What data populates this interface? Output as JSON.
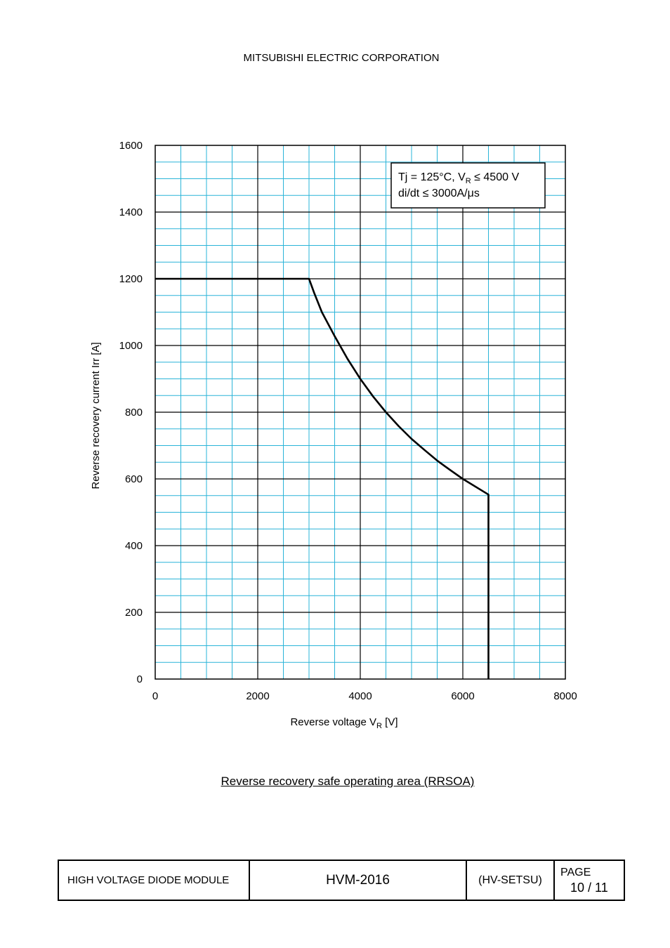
{
  "header": {
    "company": "MITSUBISHI ELECTRIC CORPORATION"
  },
  "chart_data": {
    "type": "line",
    "xlabel": "Reverse voltage    V",
    "xlabel_sub": "R",
    "xlabel_unit": " [V]",
    "ylabel": "Reverse recovery current    Irr [A]",
    "xlim": [
      0,
      8000
    ],
    "ylim": [
      0,
      1600
    ],
    "x_ticks": [
      "0",
      "2000",
      "4000",
      "6000",
      "8000"
    ],
    "y_ticks": [
      "0",
      "200",
      "400",
      "600",
      "800",
      "1000",
      "1200",
      "1400",
      "1600"
    ],
    "grid": true,
    "annotation": {
      "line1_a": "Tj = 125°C, V",
      "line1_sub": "R",
      "line1_b": " ≤ 4500 V",
      "line2": "di/dt ≤ 3000A/μs"
    },
    "series": [
      {
        "x": [
          0,
          3000,
          3100,
          3250,
          3500,
          3750,
          4000,
          4250,
          4500,
          4750,
          5000,
          5250,
          5500,
          5750,
          6000,
          6500,
          6500
        ],
        "y": [
          1200,
          1200,
          1158,
          1100,
          1028,
          960,
          900,
          847,
          800,
          758,
          720,
          687,
          655,
          627,
          600,
          553,
          0
        ]
      }
    ]
  },
  "caption": "Reverse recovery safe operating area (RRSOA)",
  "footer": {
    "product": "HIGH VOLTAGE DIODE MODULE",
    "model": "HVM-2016",
    "code": "(HV-SETSU)",
    "page_label": "PAGE",
    "page_number": "10 / 11"
  },
  "colors": {
    "minor_grid": "#2ab4d8",
    "major_grid": "#000000",
    "curve": "#000000"
  }
}
